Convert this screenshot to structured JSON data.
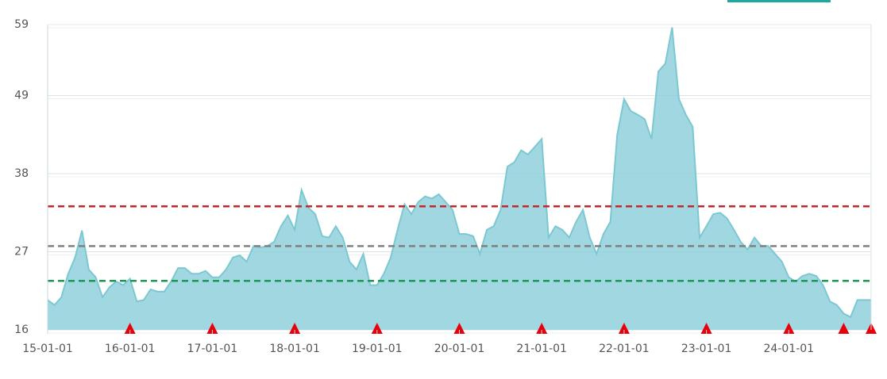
{
  "chart_data": {
    "type": "area",
    "x": [
      "15-01-01",
      "15-02-01",
      "15-03-01",
      "15-04-01",
      "15-05-01",
      "15-06-01",
      "15-07-01",
      "15-08-01",
      "15-09-01",
      "15-10-01",
      "15-11-01",
      "15-12-01",
      "16-01-01",
      "16-02-01",
      "16-03-01",
      "16-04-01",
      "16-05-01",
      "16-06-01",
      "16-07-01",
      "16-08-01",
      "16-09-01",
      "16-10-01",
      "16-11-01",
      "16-12-01",
      "17-01-01",
      "17-02-01",
      "17-03-01",
      "17-04-01",
      "17-05-01",
      "17-06-01",
      "17-07-01",
      "17-08-01",
      "17-09-01",
      "17-10-01",
      "17-11-01",
      "17-12-01",
      "18-01-01",
      "18-02-01",
      "18-03-01",
      "18-04-01",
      "18-05-01",
      "18-06-01",
      "18-07-01",
      "18-08-01",
      "18-09-01",
      "18-10-01",
      "18-11-01",
      "18-12-01",
      "19-01-01",
      "19-02-01",
      "19-03-01",
      "19-04-01",
      "19-05-01",
      "19-06-01",
      "19-07-01",
      "19-08-01",
      "19-09-01",
      "19-10-01",
      "19-11-01",
      "19-12-01",
      "20-01-01",
      "20-02-01",
      "20-03-01",
      "20-04-01",
      "20-05-01",
      "20-06-01",
      "20-07-01",
      "20-08-01",
      "20-09-01",
      "20-10-01",
      "20-11-01",
      "20-12-01",
      "21-01-01",
      "21-02-01",
      "21-03-01",
      "21-04-01",
      "21-05-01",
      "21-06-01",
      "21-07-01",
      "21-08-01",
      "21-09-01",
      "21-10-01",
      "21-11-01",
      "21-12-01",
      "22-01-01",
      "22-02-01",
      "22-03-01",
      "22-04-01",
      "22-05-01",
      "22-06-01",
      "22-07-01",
      "22-08-01",
      "22-09-01",
      "22-10-01",
      "22-11-01",
      "22-12-01",
      "23-01-01",
      "23-02-01",
      "23-03-01",
      "23-04-01",
      "23-05-01",
      "23-06-01",
      "23-07-01",
      "23-08-01",
      "23-09-01",
      "23-10-01",
      "23-11-01",
      "23-12-01",
      "24-01-01",
      "24-02-01",
      "24-03-01",
      "24-04-01",
      "24-05-01",
      "24-06-01",
      "24-07-01",
      "24-08-01",
      "24-09-01",
      "24-10-01",
      "24-11-01",
      "24-12-01",
      "25-01-01"
    ],
    "series": [
      {
        "color": "#8fd0da",
        "values": [
          20.2,
          19.5,
          20.6,
          23.9,
          26.2,
          30.0,
          24.5,
          23.4,
          20.6,
          22.0,
          22.8,
          22.3,
          23.2,
          20.0,
          20.2,
          21.7,
          21.4,
          21.4,
          22.8,
          24.7,
          24.7,
          23.9,
          23.9,
          24.3,
          23.4,
          23.4,
          24.5,
          26.2,
          26.5,
          25.6,
          27.8,
          27.6,
          27.8,
          28.4,
          30.6,
          32.1,
          30.1,
          35.7,
          33.2,
          32.3,
          29.2,
          29.0,
          30.6,
          29.0,
          25.6,
          24.5,
          26.7,
          22.3,
          22.3,
          23.9,
          26.2,
          30.1,
          33.7,
          32.3,
          34.0,
          34.8,
          34.5,
          35.1,
          34.0,
          32.9,
          29.5,
          29.5,
          29.2,
          26.7,
          30.1,
          30.6,
          32.9,
          39.0,
          39.6,
          41.3,
          40.7,
          41.8,
          42.9,
          29.0,
          30.6,
          30.1,
          29.0,
          31.2,
          32.9,
          29.0,
          26.7,
          29.5,
          31.2,
          43.5,
          48.5,
          46.8,
          46.3,
          45.7,
          42.9,
          52.4,
          53.5,
          58.6,
          48.5,
          46.3,
          44.6,
          29.0,
          30.6,
          32.3,
          32.5,
          31.7,
          30.1,
          28.4,
          27.3,
          29.0,
          27.8,
          27.8,
          26.7,
          25.6,
          23.4,
          22.8,
          23.6,
          23.9,
          23.6,
          22.3,
          20.0,
          19.5,
          18.3,
          17.8,
          20.2,
          20.2,
          20.2
        ]
      }
    ],
    "ylim": [
      16,
      59
    ],
    "yticks": [
      16,
      27,
      38,
      49,
      59
    ],
    "xlim": [
      "15-01-01",
      "25-01-01"
    ],
    "xticks": [
      "15-01-01",
      "16-01-01",
      "17-01-01",
      "18-01-01",
      "19-01-01",
      "20-01-01",
      "21-01-01",
      "22-01-01",
      "23-01-01",
      "24-01-01"
    ],
    "grid": true,
    "reference_lines": [
      {
        "value": 33.4,
        "color": "#c0282a"
      },
      {
        "value": 27.8,
        "color": "#808080"
      },
      {
        "value": 22.9,
        "color": "#1a9a55"
      }
    ],
    "markers": {
      "color": "#e8000b",
      "x": [
        "16-01-01",
        "17-01-01",
        "18-01-01",
        "19-01-01",
        "20-01-01",
        "21-01-01",
        "22-01-01",
        "23-01-01",
        "24-01-01",
        "24-09-01",
        "25-01-01"
      ]
    }
  }
}
